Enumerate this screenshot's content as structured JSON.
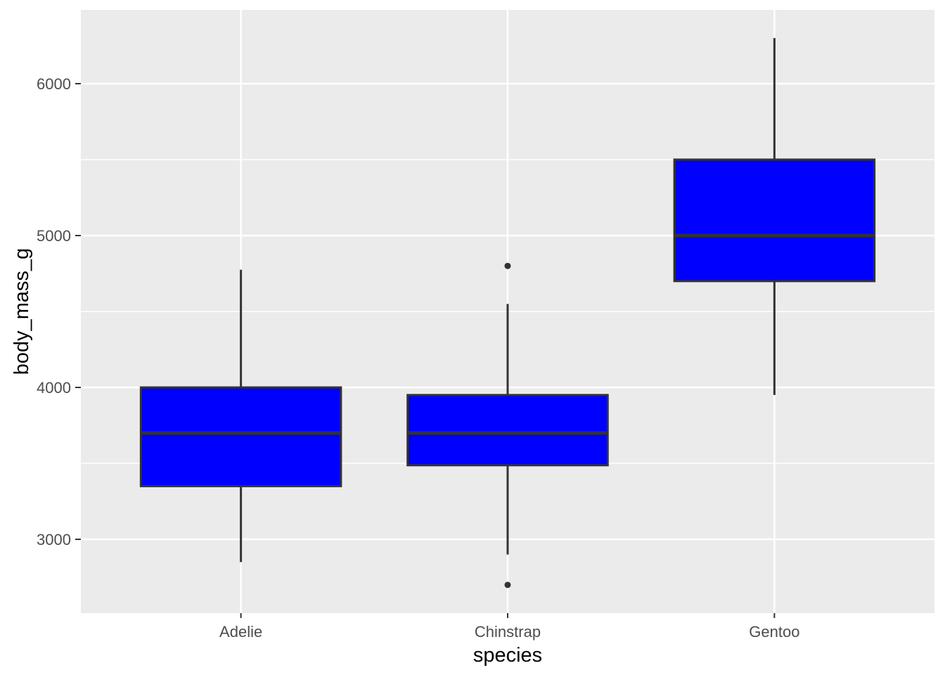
{
  "figure": {
    "background": "#FFFFFF"
  },
  "chart_data": {
    "type": "boxplot",
    "title": "",
    "xlabel": "species",
    "ylabel": "body_mass_g",
    "categories": [
      "Adelie",
      "Chinstrap",
      "Gentoo"
    ],
    "x_tick_labels": [
      "Adelie",
      "Chinstrap",
      "Gentoo"
    ],
    "y_ticks": [
      3000,
      4000,
      5000,
      6000
    ],
    "y_tick_labels": [
      "3000",
      "4000",
      "5000",
      "6000"
    ],
    "y_minor_gridlines": [
      3500,
      4500,
      5500
    ],
    "ylim": [
      2514,
      6486
    ],
    "grid": {
      "major_horizontal": true,
      "minor_horizontal": true,
      "major_vertical": true,
      "minor_vertical": false
    },
    "legend": "none",
    "series": [
      {
        "name": "Adelie",
        "whisker_low": 2850,
        "q1": 3350,
        "median": 3700,
        "q3": 4000,
        "whisker_high": 4775,
        "outliers": []
      },
      {
        "name": "Chinstrap",
        "whisker_low": 2900,
        "q1": 3487.5,
        "median": 3700,
        "q3": 3950,
        "whisker_high": 4550,
        "outliers": [
          4800,
          2700
        ]
      },
      {
        "name": "Gentoo",
        "whisker_low": 3950,
        "q1": 4700,
        "median": 5000,
        "q3": 5500,
        "whisker_high": 6300,
        "outliers": []
      }
    ],
    "colors": {
      "box_fill": "#0000FF",
      "box_border": "#333333",
      "median_line": "#333333",
      "whisker": "#333333",
      "outlier": "#333333",
      "panel_background": "#EBEBEB",
      "gridline": "#FFFFFF",
      "tick_mark": "#333333",
      "tick_label": "#4D4D4D",
      "axis_title": "#000000"
    }
  }
}
